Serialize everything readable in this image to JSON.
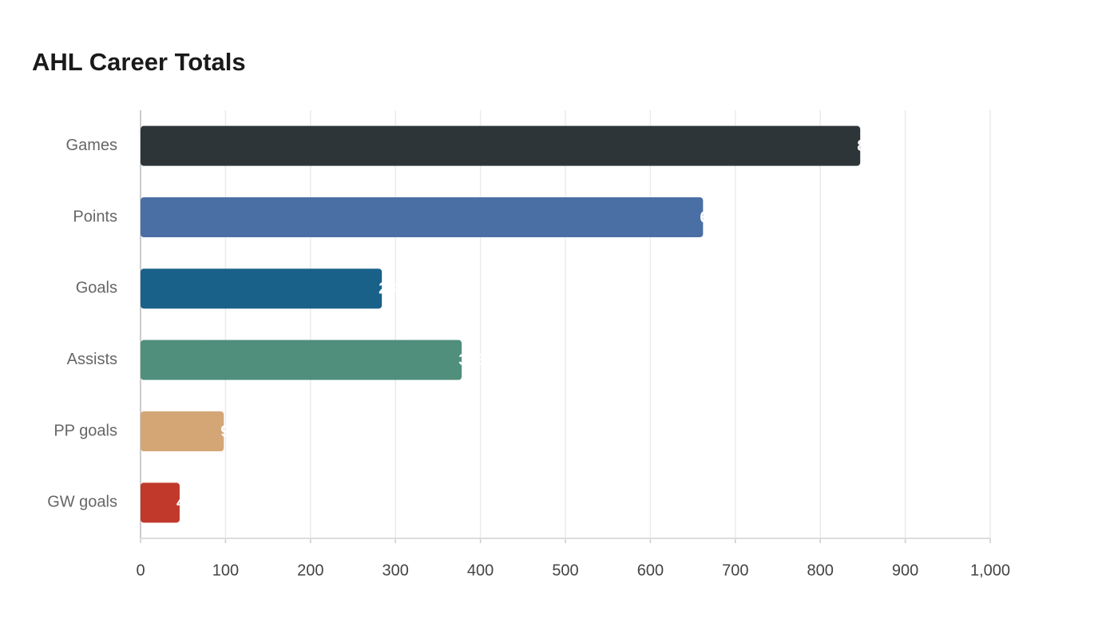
{
  "chart_data": {
    "type": "bar",
    "orientation": "horizontal",
    "title": "AHL Career Totals",
    "categories": [
      "Games",
      "Points",
      "Goals",
      "Assists",
      "PP goals",
      "GW goals"
    ],
    "values": [
      847,
      662,
      284,
      378,
      98,
      46
    ],
    "colors": [
      "#2e3538",
      "#4a6fa5",
      "#1a6189",
      "#4f8f7c",
      "#d4a676",
      "#c0392b"
    ],
    "xlim": [
      0,
      1000
    ],
    "xticks": [
      0,
      100,
      200,
      300,
      400,
      500,
      600,
      700,
      800,
      900,
      {
        "value": 1000,
        "label": "1,000"
      }
    ],
    "grid": true
  }
}
